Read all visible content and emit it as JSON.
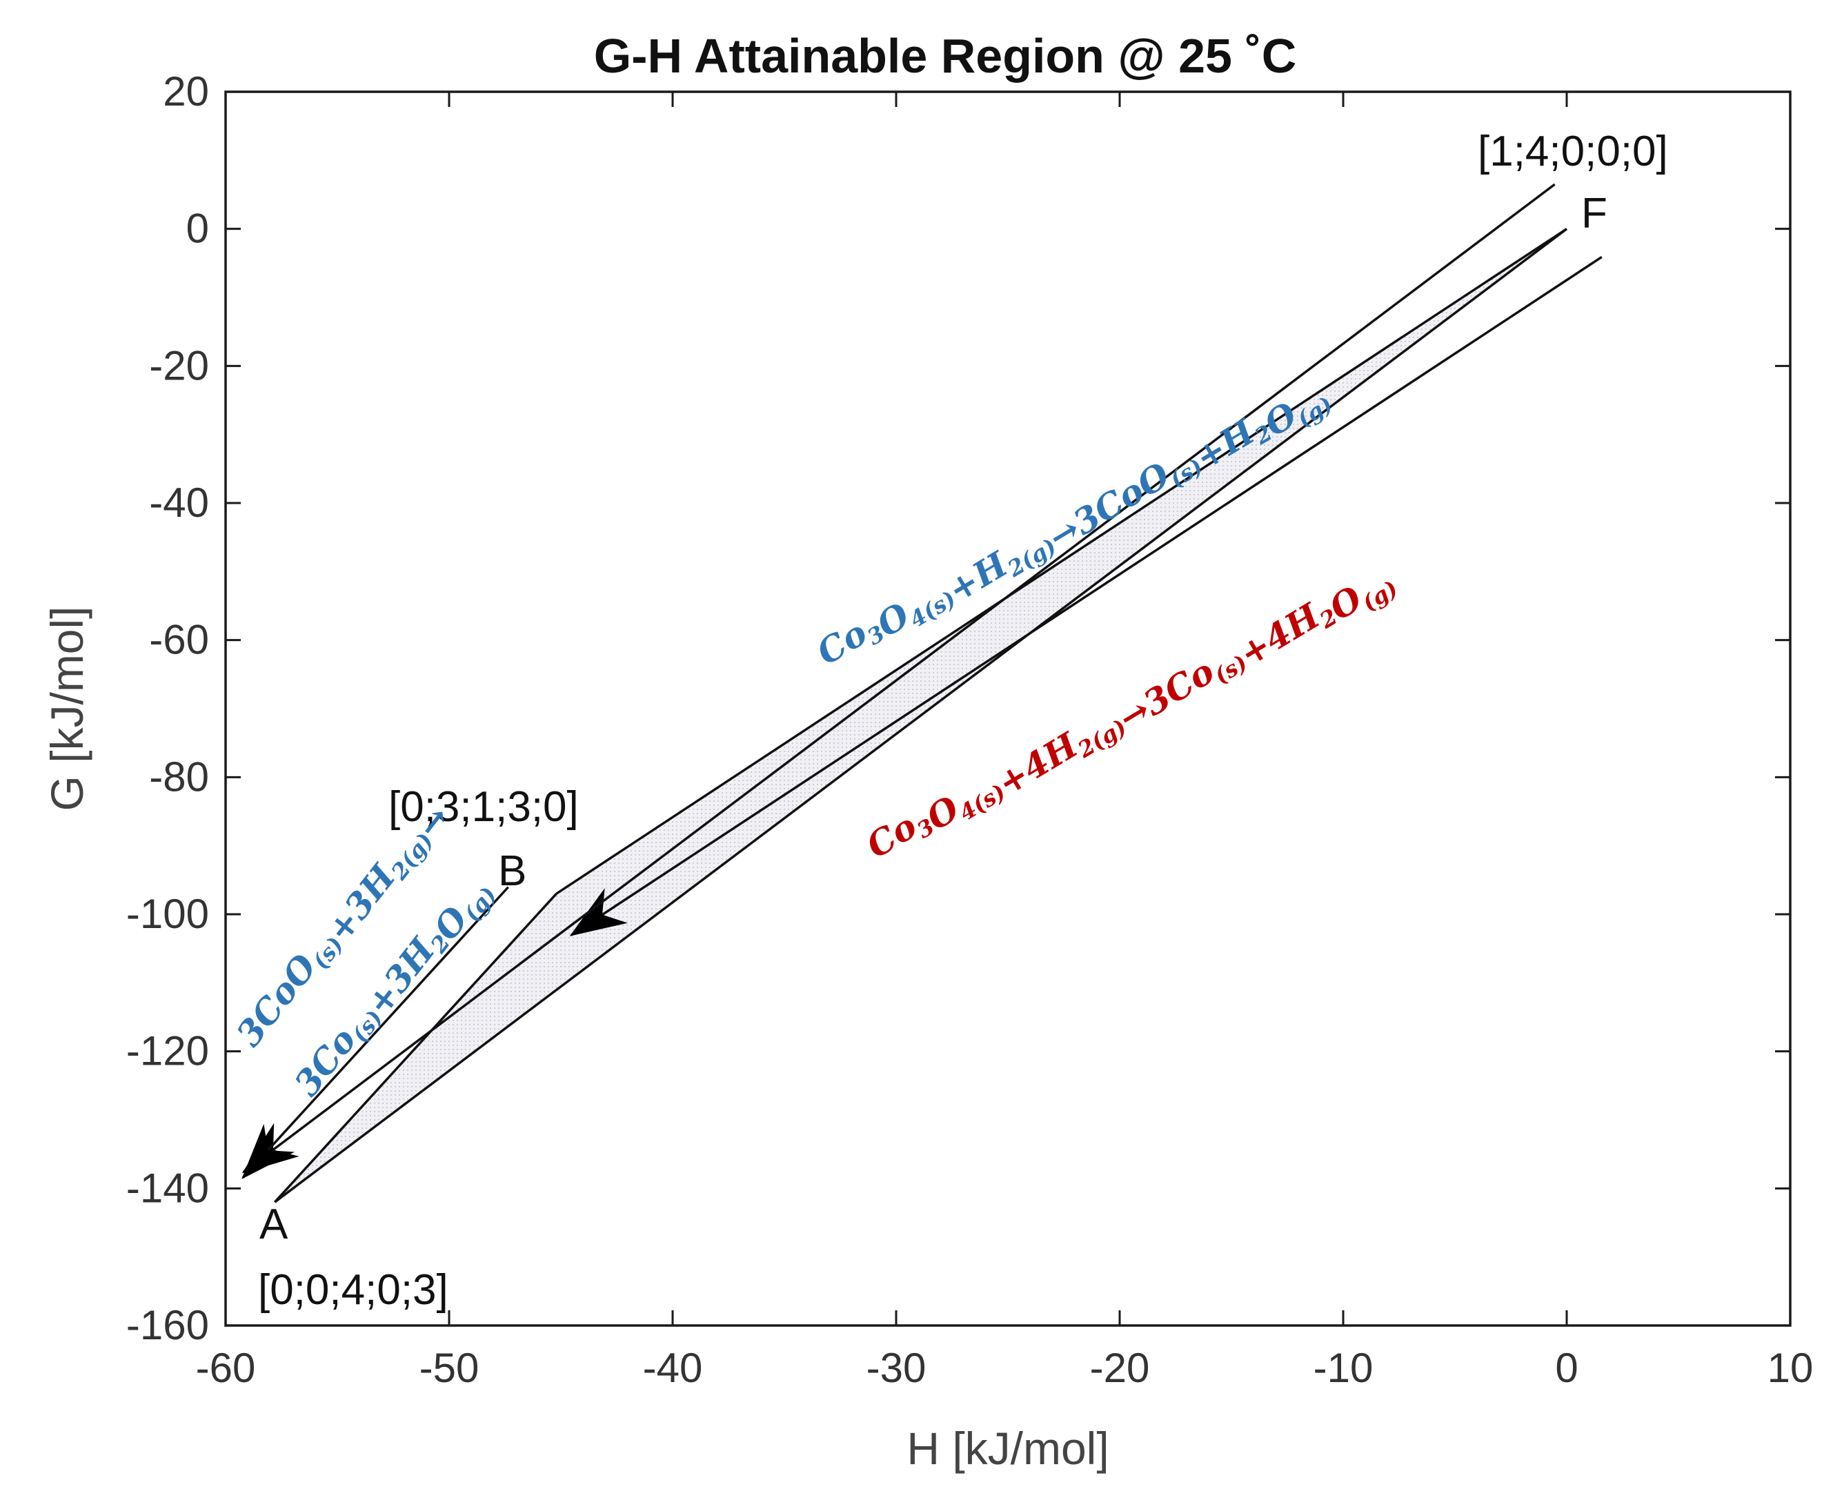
{
  "colors": {
    "blue": "#2e75b6",
    "red": "#c00000",
    "region": "#e8e8ee"
  },
  "chart_data": {
    "type": "line",
    "title": "G-H Attainable Region @ 25 ˚C",
    "xlabel": "H [kJ/mol]",
    "ylabel": "G [kJ/mol]",
    "xlim": [
      -60,
      10
    ],
    "ylim": [
      -160,
      20
    ],
    "xticks": [
      "-60",
      "-50",
      "-40",
      "-30",
      "-20",
      "-10",
      "0",
      "10"
    ],
    "yticks": [
      "20",
      "0",
      "-20",
      "-40",
      "-60",
      "-80",
      "-100",
      "-120",
      "-140",
      "-160"
    ],
    "points": {
      "F": {
        "H": 0,
        "G": 0,
        "composition": "[1;4;0;0;0]"
      },
      "B": {
        "H": -45.2,
        "G": -97,
        "composition": "[0;3;1;3;0]"
      },
      "A": {
        "H": -57.8,
        "G": -142,
        "composition": "[0;0;4;0;3]"
      }
    },
    "region_boundary": [
      {
        "from": "F",
        "to": "B"
      },
      {
        "from": "B",
        "to": "A"
      },
      {
        "from": "A",
        "to": "F"
      }
    ],
    "reactions": [
      {
        "name": "F-B",
        "color": "blue",
        "parts": [
          {
            "t": "Co"
          },
          {
            "t": "3",
            "s": "sub"
          },
          {
            "t": "O"
          },
          {
            "t": "4(s)",
            "s": "sub"
          },
          {
            "t": "+H"
          },
          {
            "t": "2(g)",
            "s": "sub"
          },
          {
            "t": "→3CoO"
          },
          {
            "t": "(s)",
            "s": "sub"
          },
          {
            "t": "+H"
          },
          {
            "t": "2",
            "s": "sub"
          },
          {
            "t": "O"
          },
          {
            "t": "(g)",
            "s": "sub"
          }
        ]
      },
      {
        "name": "F-A",
        "color": "red",
        "parts": [
          {
            "t": "Co"
          },
          {
            "t": "3",
            "s": "sub"
          },
          {
            "t": "O"
          },
          {
            "t": "4(s)",
            "s": "sub"
          },
          {
            "t": "+4H"
          },
          {
            "t": "2(g)",
            "s": "sub"
          },
          {
            "t": "→3Co"
          },
          {
            "t": "(s)",
            "s": "sub"
          },
          {
            "t": "+4H"
          },
          {
            "t": "2",
            "s": "sub"
          },
          {
            "t": "O"
          },
          {
            "t": "(g)",
            "s": "sub"
          }
        ]
      },
      {
        "name": "B-A-line1",
        "color": "blue",
        "parts": [
          {
            "t": "3CoO"
          },
          {
            "t": "(s)",
            "s": "sub"
          },
          {
            "t": "+3H"
          },
          {
            "t": "2(g)",
            "s": "sub"
          },
          {
            "t": "→"
          }
        ]
      },
      {
        "name": "B-A-line2",
        "color": "blue",
        "parts": [
          {
            "t": "3Co"
          },
          {
            "t": "(s)",
            "s": "sub"
          },
          {
            "t": "+3H"
          },
          {
            "t": "2",
            "s": "sub"
          },
          {
            "t": "O"
          },
          {
            "t": "(g)",
            "s": "sub"
          }
        ]
      }
    ]
  }
}
